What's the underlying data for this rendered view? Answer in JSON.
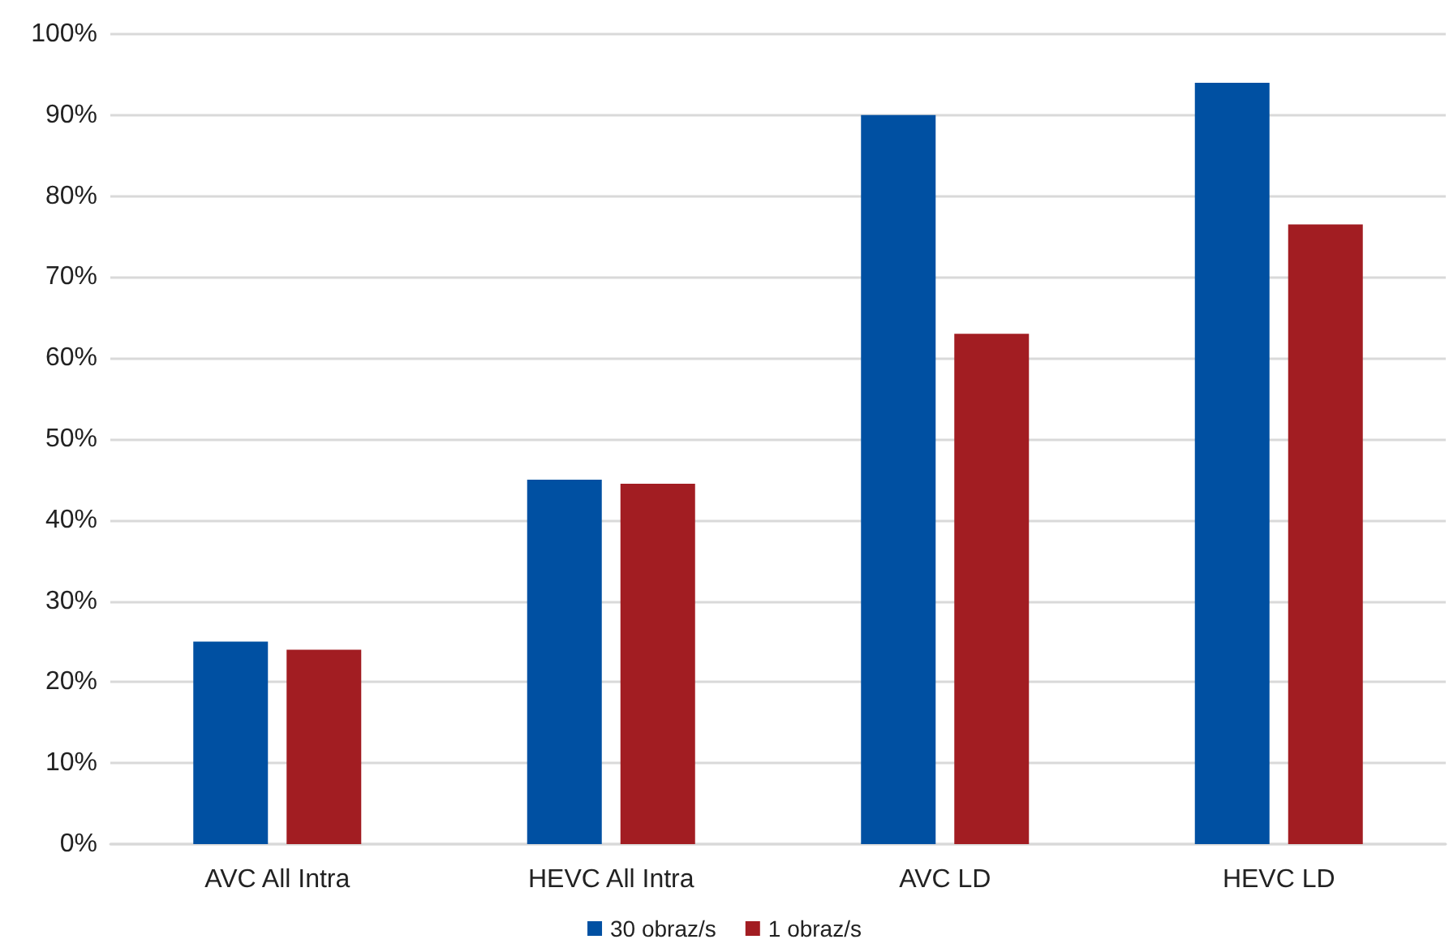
{
  "chart_data": {
    "type": "bar",
    "categories": [
      "AVC All Intra",
      "HEVC All Intra",
      "AVC LD",
      "HEVC LD"
    ],
    "series": [
      {
        "name": "30 obraz/s",
        "color": "#0050a2",
        "values": [
          25,
          45,
          90,
          94
        ]
      },
      {
        "name": "1 obraz/s",
        "color": "#a21d22",
        "values": [
          24,
          44.5,
          63,
          76.5
        ]
      }
    ],
    "ylim": [
      0,
      100
    ],
    "yticks": [
      {
        "value": 0,
        "label": "0%"
      },
      {
        "value": 10,
        "label": "10%"
      },
      {
        "value": 20,
        "label": "20%"
      },
      {
        "value": 30,
        "label": "30%"
      },
      {
        "value": 40,
        "label": "40%"
      },
      {
        "value": 50,
        "label": "50%"
      },
      {
        "value": 60,
        "label": "60%"
      },
      {
        "value": 70,
        "label": "70%"
      },
      {
        "value": 80,
        "label": "80%"
      },
      {
        "value": 90,
        "label": "90%"
      },
      {
        "value": 100,
        "label": "100%"
      }
    ],
    "grid": "y",
    "legend": "bottom"
  }
}
